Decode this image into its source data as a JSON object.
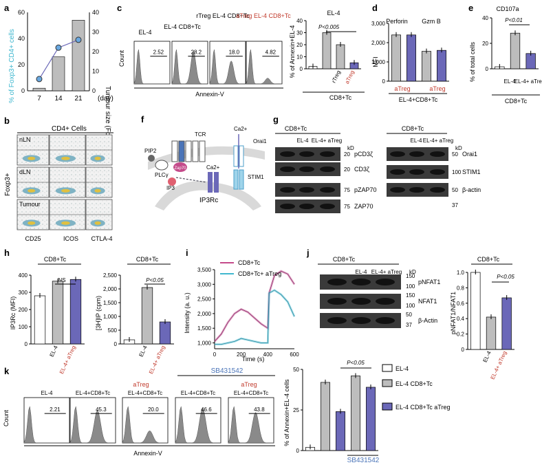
{
  "colors": {
    "gray": "#bdbdbd",
    "purple": "#6b68b8",
    "red": "#c0392b",
    "blue": "#4a74b8",
    "cyan": "#3fb7cf",
    "flow": "#8a8a8a"
  },
  "panel_letters": [
    "a",
    "b",
    "c",
    "d",
    "e",
    "f",
    "g",
    "h",
    "i",
    "j",
    "k"
  ],
  "a": {
    "ylabel_left": "% of Foxp3+ CD4+ cells",
    "ylabel_right": "Tumour size (Fold)",
    "x_ticks": [
      "7",
      "14",
      "21"
    ],
    "x_unit": "(day)",
    "left_ticks": [
      "0",
      "20",
      "40",
      "60"
    ],
    "right_ticks": [
      "0",
      "10",
      "20",
      "30",
      "40"
    ],
    "chart_data": {
      "type": "bar",
      "categories": [
        "7",
        "14",
        "21"
      ],
      "bars": [
        2,
        26,
        54
      ],
      "line": [
        6,
        22,
        26
      ],
      "left_ylim": [
        0,
        60
      ],
      "right_ylim": [
        0,
        40
      ]
    }
  },
  "b": {
    "title": "CD4+ Cells",
    "rows": [
      "nLN",
      "dLN",
      "Tumour"
    ],
    "cols": [
      "CD25",
      "ICOS",
      "CTLA-4"
    ],
    "ylabel": "Foxp3+"
  },
  "c": {
    "hist_headers": [
      "EL-4",
      "EL-4 CD8+Tc",
      "rTreg EL-4 CD8+Tc",
      "aTreg EL-4 CD8+Tc"
    ],
    "gates": [
      "2.52",
      "28.2",
      "18.0",
      "4.82"
    ],
    "ylabel": "Count",
    "xlabel": "Annexin-V",
    "bar_title": "EL-4",
    "pval": "P<0.005",
    "bar_ylabel": "% of Annexin+EL-4",
    "bar_ticks": [
      "0",
      "10",
      "20",
      "30",
      "40"
    ],
    "xcats": [
      "",
      "",
      "rTreg",
      "aTreg"
    ],
    "group_label": "CD8+Tc",
    "chart_data": {
      "type": "bar",
      "categories": [
        "EL-4",
        "EL-4+CD8+Tc",
        "rTreg",
        "aTreg"
      ],
      "values": [
        2,
        30,
        20,
        5
      ],
      "ylim": [
        0,
        40
      ]
    }
  },
  "d": {
    "labels": [
      "Perforin",
      "Gzm B"
    ],
    "ylabel": "MFI",
    "ticks": [
      "0",
      "1,000",
      "2,000",
      "3,000"
    ],
    "sub": "aTreg",
    "group": "EL-4+CD8+Tc",
    "chart_data": {
      "type": "bar",
      "series": [
        {
          "name": "Perforin",
          "values": [
            2400,
            2400
          ]
        },
        {
          "name": "Gzm B",
          "values": [
            1550,
            1600
          ]
        }
      ],
      "ylim": [
        0,
        3000
      ]
    }
  },
  "e": {
    "title": "CD107a",
    "pval": "P<0.01",
    "ylabel": "% of total cells",
    "ticks": [
      "0",
      "20",
      "40"
    ],
    "xcats": [
      "EL-4",
      "EL-4+ aTreg"
    ],
    "group": "CD8+Tc",
    "chart_data": {
      "type": "bar",
      "categories": [
        "",
        "EL-4",
        "EL-4+ aTreg"
      ],
      "values": [
        2,
        35,
        15
      ],
      "ylim": [
        0,
        50
      ]
    }
  },
  "f": {
    "labels": [
      "TCR",
      "Ca2+",
      "Orai1",
      "PIP2",
      "PLCγ",
      "Zap70",
      "IP3",
      "Ca2+",
      "STIM1",
      "IP3Rc"
    ]
  },
  "g": {
    "left_header": "CD8+Tc",
    "left_cols": [
      "EL-4",
      "EL-4+ aTreg"
    ],
    "kd": "kD",
    "left_rows": [
      {
        "kd": "20",
        "name": "pCD3ζ"
      },
      {
        "kd": "20",
        "name": "CD3ζ"
      },
      {
        "kd": "75",
        "name": "pZAP70"
      },
      {
        "kd": "75",
        "name": "ZAP70"
      }
    ],
    "right_header": "CD8+Tc",
    "right_cols": [
      "EL-4",
      "EL-4+ aTreg"
    ],
    "right_rows": [
      {
        "kd": "50",
        "name": "Orai1"
      },
      {
        "kd": "100",
        "name": "STIM1"
      },
      {
        "kd": "50",
        "name": "β-actin"
      },
      {
        "kd": "37",
        "name": ""
      }
    ]
  },
  "h": {
    "left": {
      "title": "CD8+Tc",
      "ns": "NS",
      "ylabel": "IP3Rc (MFI)",
      "ticks": [
        "0",
        "100",
        "200",
        "300",
        "400"
      ],
      "xcats": [
        "",
        "EL-4",
        "EL-4+ aTreg"
      ],
      "chart_data": {
        "type": "bar",
        "values": [
          280,
          365,
          375
        ],
        "ylim": [
          0,
          400
        ]
      }
    },
    "right": {
      "title": "CD8+Tc",
      "pval": "P<0.05",
      "ylabel": "[3H]IP (cpm)",
      "ticks": [
        "0",
        "500",
        "1,000",
        "1,500",
        "2,000",
        "2,500"
      ],
      "xcats": [
        "",
        "EL-4",
        "EL-4+ aTreg"
      ],
      "chart_data": {
        "type": "bar",
        "values": [
          150,
          2050,
          800
        ],
        "ylim": [
          0,
          2500
        ]
      }
    }
  },
  "i": {
    "legend": [
      "CD8+Tc",
      "CD8+Tc+ aTreg"
    ],
    "ylabel": "Intensity (a. u.)",
    "xlabel": "Time (s)",
    "yticks": [
      "1,000",
      "1,500",
      "2,000",
      "2,500",
      "3,000",
      "3,500"
    ],
    "xticks": [
      "0",
      "200",
      "400",
      "600"
    ],
    "chart_data": {
      "type": "line",
      "x": [
        0,
        50,
        100,
        150,
        200,
        250,
        300,
        350,
        400,
        410,
        450,
        500,
        550,
        600
      ],
      "series": [
        {
          "name": "CD8+Tc",
          "values": [
            1050,
            1300,
            1700,
            2000,
            2150,
            2050,
            1850,
            1650,
            1500,
            2700,
            3300,
            3450,
            3350,
            3000
          ]
        },
        {
          "name": "CD8+Tc+ aTreg",
          "values": [
            950,
            950,
            1000,
            1050,
            1150,
            1100,
            1050,
            1000,
            1000,
            2700,
            2800,
            2650,
            2400,
            1900
          ]
        }
      ],
      "ylim": [
        800,
        3500
      ],
      "xlim": [
        0,
        600
      ]
    }
  },
  "j": {
    "header": "CD8+Tc",
    "cols": [
      "EL-4",
      "EL-4+ aTreg"
    ],
    "kd": "kD",
    "rows": [
      {
        "kd": [
          "150",
          "100"
        ],
        "name": "pNFAT1"
      },
      {
        "kd": [
          "150",
          "100"
        ],
        "name": "NFAT1"
      },
      {
        "kd": [
          "50",
          "37"
        ],
        "name": "β-Actin"
      }
    ],
    "bar": {
      "title": "CD8+Tc",
      "pval": "P<0.05",
      "ylabel": "pNFAT1/NFAT1",
      "ticks": [
        "0",
        "0.2",
        "0.4",
        "0.6",
        "0.8",
        "1.0"
      ],
      "xcats": [
        "",
        "EL-4",
        "EL-4+ aTreg"
      ],
      "chart_data": {
        "type": "bar",
        "values": [
          1.0,
          0.42,
          0.67
        ],
        "ylim": [
          0,
          1
        ]
      }
    }
  },
  "k": {
    "headers": [
      "EL-4",
      "EL-4+CD8+Tc",
      "EL-4+CD8+Tc",
      "EL-4+CD8+Tc",
      "EL-4+CD8+Tc"
    ],
    "over": [
      "",
      "",
      "aTreg",
      "",
      "aTreg"
    ],
    "sb": "SB431542",
    "gates": [
      "2.21",
      "45.3",
      "20.0",
      "46.6",
      "43.8"
    ],
    "ylabel": "Count",
    "xlabel": "Annexin-V",
    "bar": {
      "ylabel": "% of Annexin+EL-4 cells",
      "ticks": [
        "0",
        "25",
        "50"
      ],
      "pval": "P<0.05",
      "sb": "SB431542",
      "legend": [
        "EL-4",
        "EL-4 CD8+Tc",
        "EL-4 CD8+Tc aTreg"
      ],
      "chart_data": {
        "type": "bar",
        "values": [
          2,
          42,
          24,
          46,
          39
        ],
        "ylim": [
          0,
          50
        ]
      }
    }
  }
}
